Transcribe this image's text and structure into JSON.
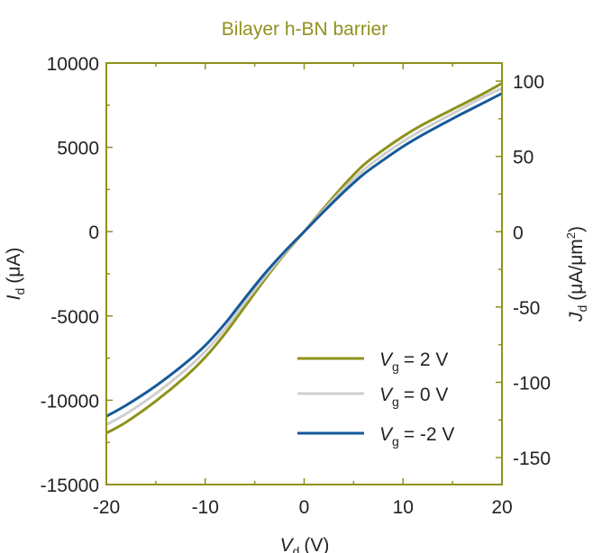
{
  "colors": {
    "frame": "#8f921c",
    "title": "#8f921c",
    "text": "#222222"
  },
  "chart_data": {
    "type": "line",
    "title": "Bilayer h-BN barrier",
    "xlabel": {
      "symbol": "V",
      "sub": "d",
      "unit": "(V)"
    },
    "ylabel_left": {
      "symbol": "I",
      "sub": "d",
      "unit": "(μA)"
    },
    "ylabel_right": {
      "symbol": "J",
      "sub": "d",
      "unit_pre": "(μA/μm",
      "unit_sup": "2",
      "unit_post": ")"
    },
    "xlim": [
      -20,
      20
    ],
    "ylim_left": [
      -15000,
      10000
    ],
    "ylim_right": [
      -167.9,
      112.0
    ],
    "x_ticks": [
      "-20",
      "-10",
      "0",
      "10",
      "20"
    ],
    "y_ticks_left": [
      "10000",
      "5000",
      "0",
      "-5000",
      "-10000",
      "-15000"
    ],
    "y_ticks_right": [
      "100",
      "50",
      "0",
      "-50",
      "-100",
      "-150"
    ],
    "grid": false,
    "legend_position": "bottom-right",
    "series": [
      {
        "name": "2 V",
        "legend": {
          "symbol": "V",
          "sub": "g",
          "rest": "= 2 V"
        },
        "color": "#8f921c",
        "points": [
          [
            -20,
            -11950
          ],
          [
            -18,
            -11300
          ],
          [
            -15,
            -10050
          ],
          [
            -12,
            -8600
          ],
          [
            -10,
            -7450
          ],
          [
            -8,
            -6050
          ],
          [
            -6,
            -4450
          ],
          [
            -4,
            -2850
          ],
          [
            -2,
            -1350
          ],
          [
            0,
            0
          ],
          [
            2,
            1400
          ],
          [
            4,
            2750
          ],
          [
            6,
            3950
          ],
          [
            8,
            4850
          ],
          [
            10,
            5650
          ],
          [
            12,
            6350
          ],
          [
            15,
            7250
          ],
          [
            18,
            8150
          ],
          [
            20,
            8800
          ]
        ]
      },
      {
        "name": "0 V",
        "legend": {
          "symbol": "V",
          "sub": "g",
          "rest": "= 0 V"
        },
        "color": "#cfcfcf",
        "points": [
          [
            -20,
            -11450
          ],
          [
            -18,
            -10800
          ],
          [
            -15,
            -9600
          ],
          [
            -12,
            -8200
          ],
          [
            -10,
            -7100
          ],
          [
            -8,
            -5750
          ],
          [
            -6,
            -4200
          ],
          [
            -4,
            -2700
          ],
          [
            -2,
            -1280
          ],
          [
            0,
            0
          ],
          [
            2,
            1300
          ],
          [
            4,
            2550
          ],
          [
            6,
            3650
          ],
          [
            8,
            4550
          ],
          [
            10,
            5350
          ],
          [
            12,
            6050
          ],
          [
            15,
            7000
          ],
          [
            18,
            7950
          ],
          [
            20,
            8500
          ]
        ]
      },
      {
        "name": "-2 V",
        "legend": {
          "symbol": "V",
          "sub": "g",
          "rest": "= -2 V"
        },
        "color": "#165a98",
        "points": [
          [
            -20,
            -10950
          ],
          [
            -18,
            -10300
          ],
          [
            -15,
            -9150
          ],
          [
            -12,
            -7800
          ],
          [
            -10,
            -6750
          ],
          [
            -8,
            -5450
          ],
          [
            -6,
            -3950
          ],
          [
            -4,
            -2500
          ],
          [
            -2,
            -1200
          ],
          [
            0,
            0
          ],
          [
            2,
            1200
          ],
          [
            4,
            2350
          ],
          [
            6,
            3400
          ],
          [
            8,
            4250
          ],
          [
            10,
            5050
          ],
          [
            12,
            5750
          ],
          [
            15,
            6700
          ],
          [
            18,
            7600
          ],
          [
            20,
            8200
          ]
        ]
      }
    ]
  }
}
